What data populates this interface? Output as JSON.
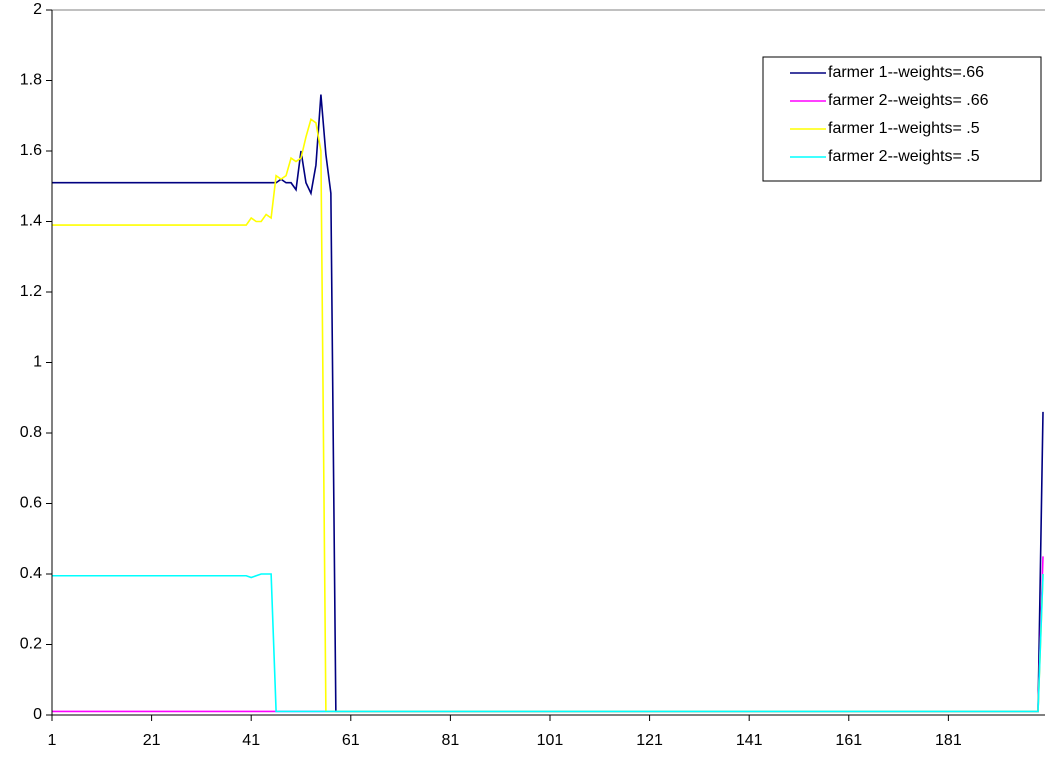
{
  "chart_data": {
    "type": "line",
    "xlim": [
      1,
      200
    ],
    "xticks": [
      1,
      21,
      41,
      61,
      81,
      101,
      121,
      141,
      161,
      181
    ],
    "ylim": [
      0,
      2
    ],
    "yticks": [
      0,
      0.2,
      0.4,
      0.6,
      0.8,
      1,
      1.2,
      1.4,
      1.6,
      1.8,
      2
    ],
    "grid": false,
    "legend": "upper right",
    "series": [
      {
        "name": "farmer 1--weights=.66",
        "color": "#000080",
        "x": [
          1,
          46,
          47,
          48,
          49,
          50,
          51,
          52,
          53,
          54,
          55,
          56,
          57,
          58,
          199,
          200
        ],
        "values": [
          1.51,
          1.51,
          1.52,
          1.51,
          1.51,
          1.49,
          1.6,
          1.51,
          1.48,
          1.56,
          1.76,
          1.59,
          1.48,
          0.01,
          0.01,
          0.86
        ]
      },
      {
        "name": "farmer 2--weights= .66",
        "color": "#ff00ff",
        "x": [
          1,
          199,
          200
        ],
        "values": [
          0.01,
          0.01,
          0.45
        ]
      },
      {
        "name": "farmer 1--weights= .5",
        "color": "#ffff00",
        "x": [
          1,
          40,
          41,
          42,
          43,
          44,
          45,
          46,
          47,
          48,
          49,
          50,
          51,
          52,
          53,
          54,
          55,
          56,
          199,
          200
        ],
        "values": [
          1.39,
          1.39,
          1.41,
          1.4,
          1.4,
          1.42,
          1.41,
          1.53,
          1.52,
          1.53,
          1.58,
          1.57,
          1.58,
          1.64,
          1.69,
          1.68,
          1.6,
          0.01,
          0.01,
          0.4
        ]
      },
      {
        "name": "farmer 2--weights= .5",
        "color": "#00ffff",
        "x": [
          1,
          40,
          41,
          42,
          43,
          44,
          45,
          46,
          199,
          200
        ],
        "values": [
          0.395,
          0.395,
          0.39,
          0.395,
          0.4,
          0.4,
          0.4,
          0.01,
          0.01,
          0.4
        ]
      }
    ]
  }
}
